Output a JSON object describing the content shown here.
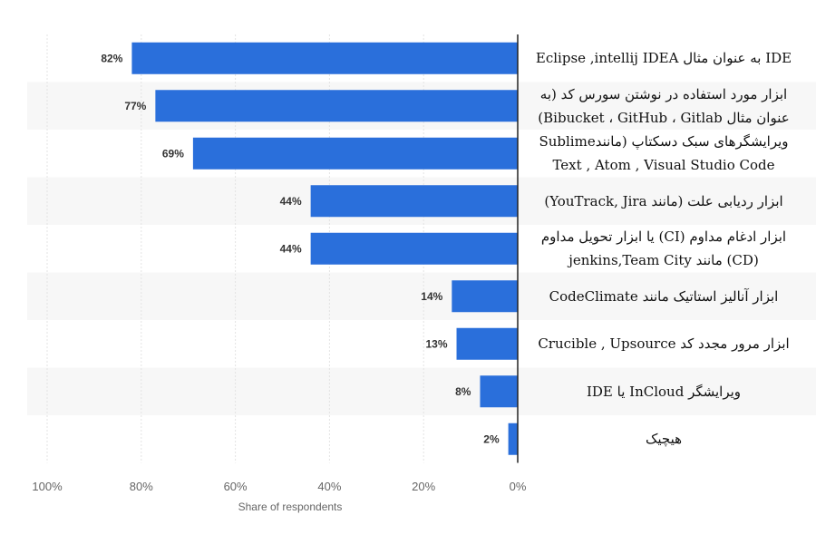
{
  "chart_data": {
    "type": "bar",
    "orientation": "horizontal",
    "x_direction": "reversed",
    "title": "",
    "xlabel": "Share of respondents",
    "ylabel": "",
    "xlim": [
      0,
      100
    ],
    "x_ticks": [
      0,
      20,
      40,
      60,
      80,
      100
    ],
    "x_tick_labels": [
      "0%",
      "20%",
      "40%",
      "60%",
      "80%",
      "100%"
    ],
    "grid": true,
    "legend": "none",
    "bar_color": "#2a6fdb",
    "categories": [
      "IDE به عنوان مثال Eclipse ,intellij IDEA",
      "ابزار مورد استفاده در نوشتن سورس کد (به عنوان مثال Bibucket ، GitHub ، Gitlab)",
      "ویرایشگرهای سبک دسکتاپ (ماندSublime Text , Atom , Visual Studio Code",
      "ابزار ردیابی علت (مانند YouTrack, Jira)",
      "ابزار ادغام مداوم (CI) یا ابزار تحویل مداوم (CD) مانند jenkins,Team City",
      "ابزار آنالیز استاتیک مانند CodeClimate",
      "ابزار مرور مجدد کد Crucible , Upsource",
      "ویرایشگر InCloud یا IDE",
      "هیچیک"
    ],
    "category_lines": [
      [
        "IDE به عنوان مثال Eclipse ,intellij IDEA"
      ],
      [
        "ابزار مورد استفاده در نوشتن سورس کد (به",
        "عنوان مثال Bibucket ، GitHub ، Gitlab)"
      ],
      [
        "ویرایشگرهای سبک دسکتاپ (مانندSublime",
        "Text , Atom , Visual Studio Code"
      ],
      [
        "ابزار ردیابی علت (مانند YouTrack, Jira)"
      ],
      [
        "ابزار ادغام مداوم (CI) یا ابزار تحویل مداوم",
        "(CD) مانند jenkins,Team City"
      ],
      [
        "ابزار آنالیز استاتیک مانند CodeClimate"
      ],
      [
        "ابزار مرور مجدد کد Crucible , Upsource"
      ],
      [
        "ویرایشگر InCloud یا IDE"
      ],
      [
        "هیچیک"
      ]
    ],
    "values": [
      82,
      77,
      69,
      44,
      44,
      14,
      13,
      8,
      2
    ],
    "value_labels": [
      "82%",
      "77%",
      "69%",
      "44%",
      "44%",
      "14%",
      "13%",
      "8%",
      "2%"
    ]
  }
}
